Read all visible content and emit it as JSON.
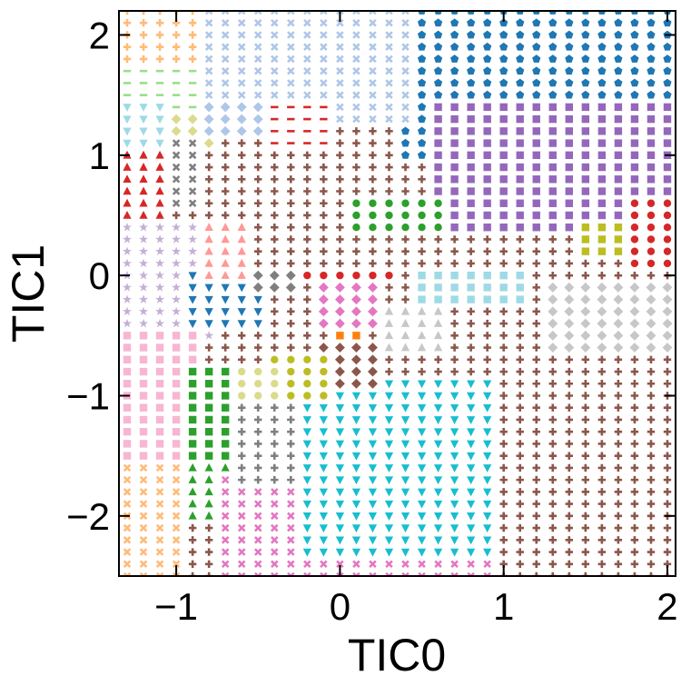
{
  "chart_data": {
    "type": "scatter",
    "title": "",
    "xlabel": "TIC0",
    "ylabel": "TIC1",
    "xlim": [
      -1.35,
      2.05
    ],
    "ylim": [
      -2.5,
      2.2
    ],
    "xticks": [
      -1,
      0,
      1,
      2
    ],
    "yticks": [
      -2,
      -1,
      0,
      1,
      2
    ],
    "xtick_labels": [
      "−1",
      "0",
      "1",
      "2"
    ],
    "ytick_labels": [
      "−2",
      "−1",
      "0",
      "1",
      "2"
    ],
    "grid": false,
    "legend": "none",
    "grid_spacing": 0.1,
    "description_of_marks": "dense grid of markers colored by cluster assignment",
    "regions": [
      {
        "color": "#8c564b",
        "marker": "plus",
        "x": [
          0.5,
          2.05
        ],
        "y": [
          -2.5,
          -0.1
        ]
      },
      {
        "color": "#1f77b4",
        "marker": "pentagon",
        "x": [
          0.35,
          2.05
        ],
        "y": [
          1.0,
          2.2
        ]
      },
      {
        "color": "#9467bd",
        "marker": "square",
        "x": [
          0.6,
          2.05
        ],
        "y": [
          0.4,
          1.4
        ]
      },
      {
        "color": "#aec7e8",
        "marker": "x",
        "x": [
          -0.9,
          0.4
        ],
        "y": [
          1.3,
          2.2
        ]
      },
      {
        "color": "#ffbb78",
        "marker": "plus",
        "x": [
          -1.35,
          -0.9
        ],
        "y": [
          1.6,
          2.2
        ]
      },
      {
        "color": "#98df8a",
        "marker": "dash",
        "x": [
          -1.35,
          -0.9
        ],
        "y": [
          1.2,
          1.7
        ]
      },
      {
        "color": "#9edae5",
        "marker": "triangle-down",
        "x": [
          -1.35,
          -1.1
        ],
        "y": [
          1.0,
          1.4
        ]
      },
      {
        "color": "#dbdb8d",
        "marker": "diamond",
        "x": [
          -1.05,
          -0.75
        ],
        "y": [
          1.1,
          1.35
        ]
      },
      {
        "color": "#d62728",
        "marker": "triangle-up",
        "x": [
          -1.35,
          -1.05
        ],
        "y": [
          0.4,
          1.05
        ]
      },
      {
        "color": "#d62728",
        "marker": "dash",
        "x": [
          -0.4,
          -0.1
        ],
        "y": [
          1.05,
          1.4
        ]
      },
      {
        "color": "#aec7e8",
        "marker": "diamond",
        "x": [
          -0.8,
          -0.5
        ],
        "y": [
          1.2,
          1.45
        ]
      },
      {
        "color": "#c5b0d5",
        "marker": "star",
        "x": [
          -1.35,
          -0.8
        ],
        "y": [
          -0.5,
          0.4
        ]
      },
      {
        "color": "#f7b6d2",
        "marker": "square",
        "x": [
          -1.35,
          -0.9
        ],
        "y": [
          -1.55,
          -0.5
        ]
      },
      {
        "color": "#2ca02c",
        "marker": "square",
        "x": [
          -0.95,
          -0.7
        ],
        "y": [
          -1.6,
          -0.8
        ]
      },
      {
        "color": "#2ca02c",
        "marker": "triangle-up",
        "x": [
          -0.95,
          -0.7
        ],
        "y": [
          -2.0,
          -1.6
        ]
      },
      {
        "color": "#ffbb78",
        "marker": "x",
        "x": [
          -1.35,
          -1.0
        ],
        "y": [
          -2.5,
          -1.6
        ]
      },
      {
        "color": "#e377c2",
        "marker": "x",
        "x": [
          -0.75,
          0.9
        ],
        "y": [
          -2.5,
          -1.7
        ]
      },
      {
        "color": "#17becf",
        "marker": "triangle-down",
        "x": [
          -0.25,
          0.9
        ],
        "y": [
          -2.3,
          -0.85
        ]
      },
      {
        "color": "#1f77b4",
        "marker": "triangle-down",
        "x": [
          -0.9,
          -0.5
        ],
        "y": [
          -0.4,
          0.0
        ]
      },
      {
        "color": "#ff9896",
        "marker": "triangle-up",
        "x": [
          -0.85,
          -0.6
        ],
        "y": [
          0.0,
          0.4
        ]
      },
      {
        "color": "#2ca02c",
        "marker": "circle",
        "x": [
          0.1,
          0.6
        ],
        "y": [
          0.4,
          0.6
        ]
      },
      {
        "color": "#d62728",
        "marker": "circle",
        "x": [
          -0.2,
          0.35
        ],
        "y": [
          -0.05,
          0.05
        ]
      },
      {
        "color": "#e377c2",
        "marker": "diamond",
        "x": [
          -0.15,
          0.25
        ],
        "y": [
          -0.4,
          -0.05
        ]
      },
      {
        "color": "#9edae5",
        "marker": "square",
        "x": [
          0.45,
          1.15
        ],
        "y": [
          -0.2,
          0.05
        ]
      },
      {
        "color": "#c7c7c7",
        "marker": "diamond",
        "x": [
          1.3,
          2.05
        ],
        "y": [
          -0.6,
          -0.1
        ]
      },
      {
        "color": "#bcbd22",
        "marker": "square",
        "x": [
          1.45,
          1.75
        ],
        "y": [
          0.2,
          0.45
        ]
      },
      {
        "color": "#d62728",
        "marker": "circle",
        "x": [
          1.8,
          2.05
        ],
        "y": [
          0.05,
          0.6
        ]
      },
      {
        "color": "#c7c7c7",
        "marker": "triangle-up",
        "x": [
          0.3,
          0.65
        ],
        "y": [
          -0.65,
          -0.3
        ]
      },
      {
        "color": "#ff7f0e",
        "marker": "square",
        "x": [
          -0.05,
          0.15
        ],
        "y": [
          -0.6,
          -0.45
        ]
      },
      {
        "color": "#8c564b",
        "marker": "diamond",
        "x": [
          -0.1,
          0.2
        ],
        "y": [
          -0.95,
          -0.6
        ]
      },
      {
        "color": "#bcbd22",
        "marker": "circle",
        "x": [
          -0.4,
          -0.1
        ],
        "y": [
          -1.05,
          -0.7
        ]
      },
      {
        "color": "#dbdb8d",
        "marker": "circle",
        "x": [
          -0.65,
          -0.4
        ],
        "y": [
          -1.1,
          -0.8
        ]
      },
      {
        "color": "#7f7f7f",
        "marker": "plus",
        "x": [
          -0.65,
          -0.25
        ],
        "y": [
          -1.7,
          -1.1
        ]
      },
      {
        "color": "#7f7f7f",
        "marker": "diamond",
        "x": [
          -0.5,
          -0.3
        ],
        "y": [
          -0.1,
          0.05
        ]
      },
      {
        "color": "#7f7f7f",
        "marker": "x",
        "x": [
          -1.0,
          -0.9
        ],
        "y": [
          0.6,
          1.1
        ]
      }
    ]
  }
}
